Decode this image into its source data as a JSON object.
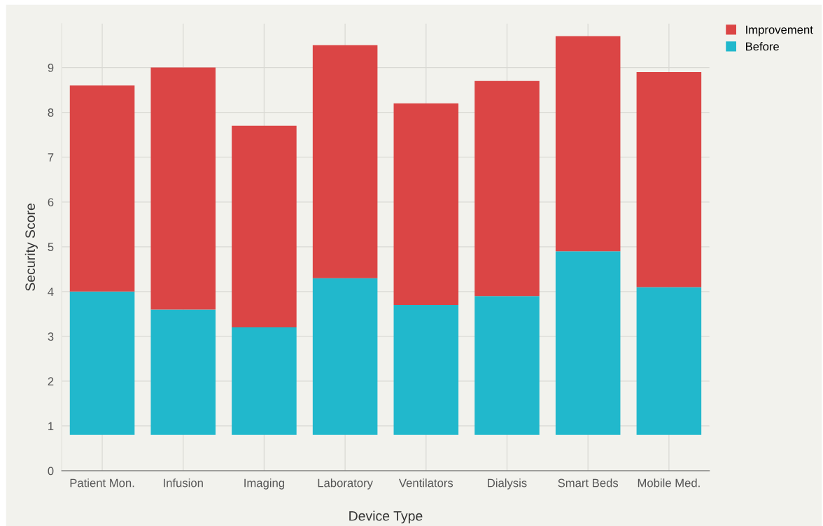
{
  "chart_data": {
    "type": "bar",
    "xlabel": "Device Type",
    "ylabel": "Security Score",
    "categories": [
      "Patient Mon.",
      "Infusion",
      "Imaging",
      "Laboratory",
      "Ventilators",
      "Dialysis",
      "Smart Beds",
      "Mobile Med."
    ],
    "series": [
      {
        "name": "Before",
        "color": "#21b8cc",
        "base": [
          0.8,
          0.8,
          0.8,
          0.8,
          0.8,
          0.8,
          0.8,
          0.8
        ],
        "values": [
          3.2,
          2.8,
          2.4,
          3.5,
          2.9,
          3.1,
          4.1,
          3.3
        ]
      },
      {
        "name": "Improvement",
        "color": "#db4545",
        "base": [
          4.0,
          3.6,
          3.2,
          4.3,
          3.7,
          3.9,
          4.9,
          4.1
        ],
        "values": [
          4.6,
          5.4,
          4.5,
          5.2,
          4.5,
          4.8,
          4.8,
          4.8
        ]
      }
    ],
    "ylim": [
      0,
      9.98
    ],
    "yticks": [
      0,
      1,
      2,
      3,
      4,
      5,
      6,
      7,
      8,
      9
    ],
    "grid": true,
    "legend": "top right"
  }
}
